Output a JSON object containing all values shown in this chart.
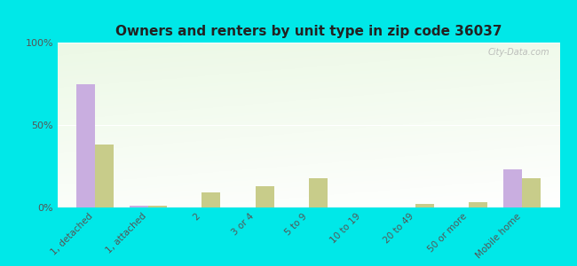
{
  "title": "Owners and renters by unit type in zip code 36037",
  "categories": [
    "1, detached",
    "1, attached",
    "2",
    "3 or 4",
    "5 to 9",
    "10 to 19",
    "20 to 49",
    "50 or more",
    "Mobile home"
  ],
  "owner_values": [
    75,
    1,
    0,
    0,
    0,
    0,
    0,
    0,
    23
  ],
  "renter_values": [
    38,
    1,
    9,
    13,
    18,
    0,
    2,
    3,
    18
  ],
  "owner_color": "#c9aee0",
  "renter_color": "#c8cc8a",
  "background_outer": "#00e8e8",
  "ylim": [
    0,
    100
  ],
  "yticks": [
    0,
    50,
    100
  ],
  "ytick_labels": [
    "0%",
    "50%",
    "100%"
  ],
  "watermark": "City-Data.com"
}
